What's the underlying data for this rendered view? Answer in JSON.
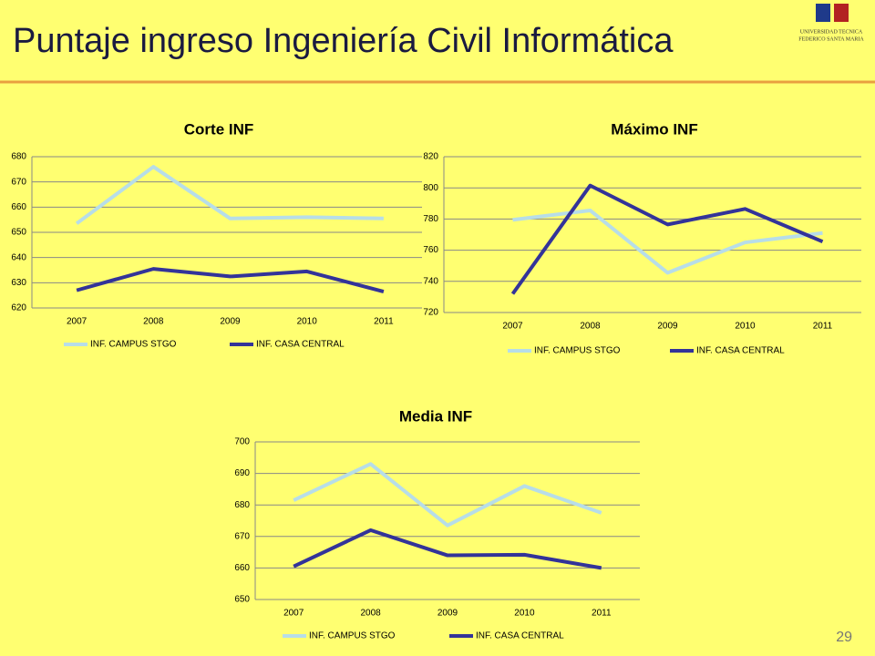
{
  "title": "Puntaje ingreso Ingeniería Civil Informática",
  "logo_text": [
    "UNIVERSIDAD TECNICA",
    "FEDERICO SANTA MARIA"
  ],
  "page_number": "29",
  "chart_data": [
    {
      "type": "line",
      "title": "Corte INF",
      "categories": [
        "2007",
        "2008",
        "2009",
        "2010",
        "2011"
      ],
      "series": [
        {
          "name": "INF. CAMPUS STGO",
          "color": "#b7dde8",
          "values": [
            653.5,
            676,
            655.5,
            656,
            655.5
          ]
        },
        {
          "name": "INF. CASA CENTRAL",
          "color": "#333399",
          "values": [
            627,
            635.5,
            632.5,
            634.5,
            626.5
          ]
        }
      ],
      "ylim": [
        620,
        680
      ],
      "yticks": [
        620,
        630,
        640,
        650,
        660,
        670,
        680
      ],
      "grid": true,
      "legend": "bottom"
    },
    {
      "type": "line",
      "title": "Máximo INF",
      "categories": [
        "2007",
        "2008",
        "2009",
        "2010",
        "2011"
      ],
      "series": [
        {
          "name": "INF. CAMPUS STGO",
          "color": "#b7dde8",
          "values": [
            779.5,
            785.5,
            745.5,
            765,
            771
          ]
        },
        {
          "name": "INF. CASA CENTRAL",
          "color": "#333399",
          "values": [
            732,
            801.5,
            776.5,
            786.5,
            765.5
          ]
        }
      ],
      "ylim": [
        720,
        820
      ],
      "yticks": [
        720,
        740,
        760,
        780,
        800,
        820
      ],
      "grid": true,
      "legend": "bottom"
    },
    {
      "type": "line",
      "title": "Media INF",
      "categories": [
        "2007",
        "2008",
        "2009",
        "2010",
        "2011"
      ],
      "series": [
        {
          "name": "INF. CAMPUS STGO",
          "color": "#b7dde8",
          "values": [
            681.5,
            693,
            673.5,
            686,
            677.5
          ]
        },
        {
          "name": "INF. CASA CENTRAL",
          "color": "#333399",
          "values": [
            660.5,
            672,
            664,
            664.2,
            660
          ]
        }
      ],
      "ylim": [
        650,
        700
      ],
      "yticks": [
        650,
        660,
        670,
        680,
        690,
        700
      ],
      "grid": true,
      "legend": "bottom"
    }
  ]
}
